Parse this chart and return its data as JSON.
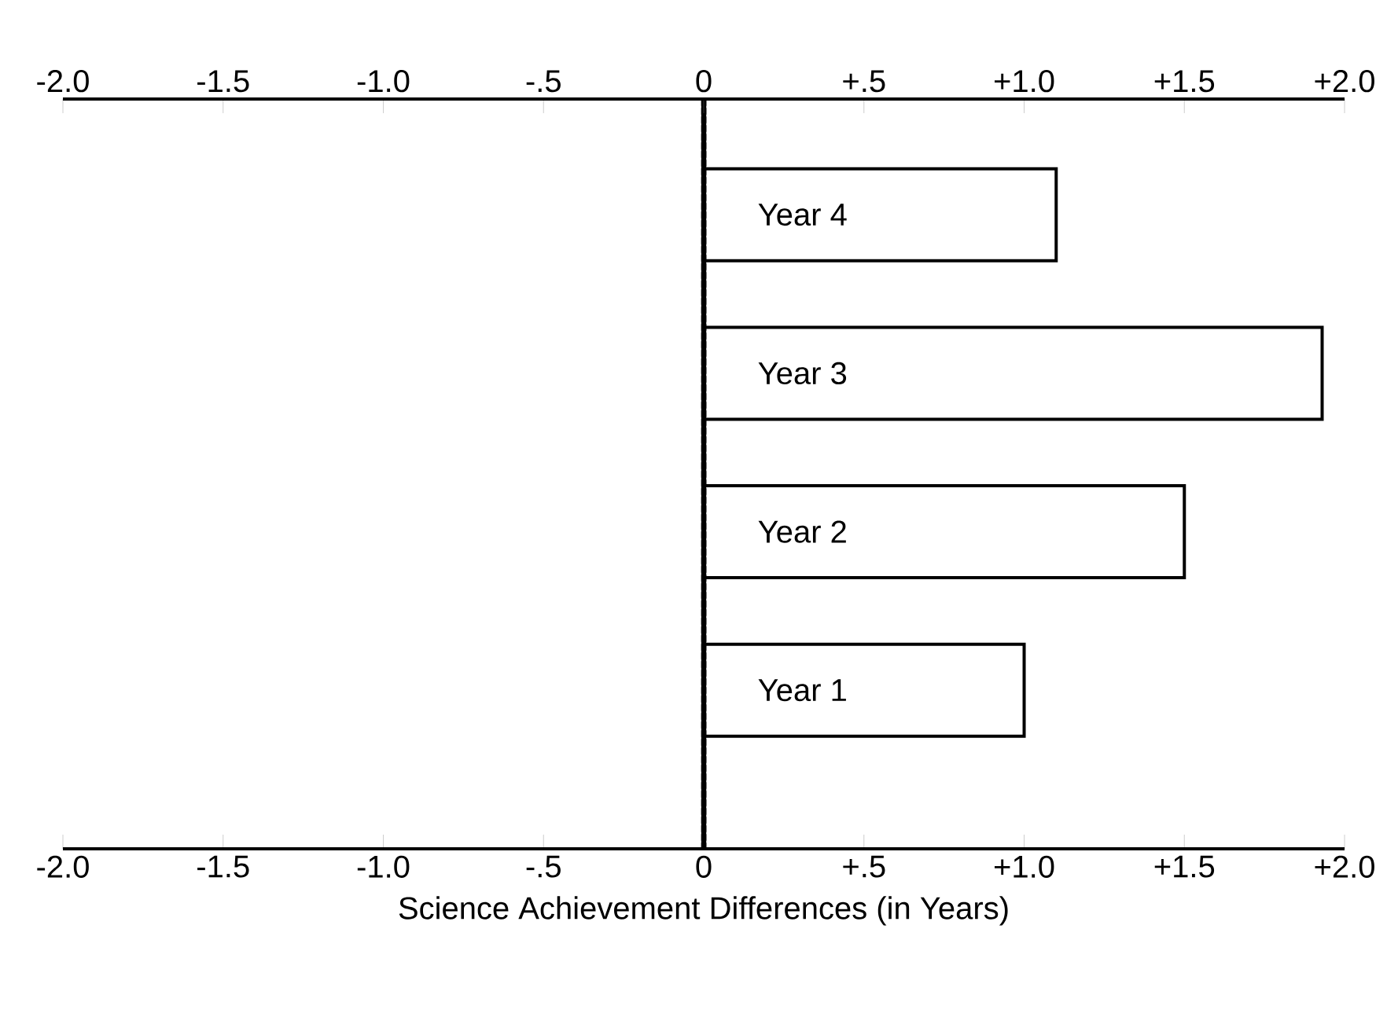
{
  "chart_data": {
    "type": "bar",
    "orientation": "horizontal",
    "xlabel": "Science Achievement Differences (in Years)",
    "categories": [
      "Year 4",
      "Year 3",
      "Year 2",
      "Year 1"
    ],
    "values": [
      1.1,
      1.93,
      1.5,
      1.0
    ],
    "color": "#ffffff",
    "xlim": [
      -2,
      2
    ],
    "xticks": [
      {
        "value": -2,
        "label": "-2.0"
      },
      {
        "value": -1.5,
        "label": "-1.5"
      },
      {
        "value": -1,
        "label": "-1.0"
      },
      {
        "value": -0.5,
        "label": "-.5"
      },
      0,
      {
        "value": 0.5,
        "label": "+.5"
      },
      {
        "value": 1,
        "label": "+1.0"
      },
      {
        "value": 1.5,
        "label": "+1.5"
      },
      {
        "value": 2,
        "label": "+2.0"
      }
    ],
    "x2lim": [
      -2,
      2
    ],
    "x2ticks": [
      {
        "value": -2,
        "label": "-2.0"
      },
      {
        "value": -1.5,
        "label": "-1.5"
      },
      {
        "value": -1,
        "label": "-1.0"
      },
      {
        "value": -0.5,
        "label": "-.5"
      },
      0,
      {
        "value": 0.5,
        "label": "+.5"
      },
      {
        "value": 1,
        "label": "+1.0"
      },
      {
        "value": 1.5,
        "label": "+1.5"
      },
      {
        "value": 2,
        "label": "+2.0"
      }
    ],
    "ref_lines": [
      {
        "axis": "x",
        "value": 0,
        "line_style": "dotted"
      }
    ]
  }
}
